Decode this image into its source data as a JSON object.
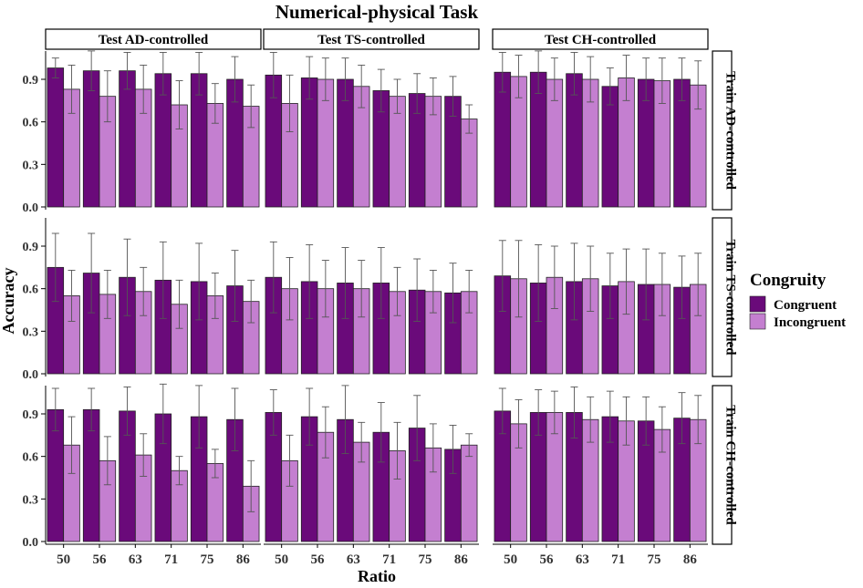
{
  "chart_data": {
    "type": "bar",
    "title": "Numerical-physical Task",
    "xlabel": "Ratio",
    "ylabel": "Accuracy",
    "ylim": [
      0,
      1.08
    ],
    "yticks": [
      "0.0",
      "0.3",
      "0.6",
      "0.9"
    ],
    "ytick_values": [
      0,
      0.3,
      0.6,
      0.9
    ],
    "categories": [
      "50",
      "56",
      "63",
      "71",
      "75",
      "86"
    ],
    "grid": false,
    "legend": {
      "title": "Congruity",
      "placement": "right",
      "entries": [
        {
          "label": "Congruent",
          "color": "#6a0a7a"
        },
        {
          "label": "Incongruent",
          "color": "#c47fd0"
        }
      ]
    },
    "col_facets": [
      "Test AD-controlled",
      "Test TS-controlled",
      "Test CH-controlled"
    ],
    "row_facets": [
      "Train AD-controlled",
      "Train TS-controlled",
      "Train CH-controlled"
    ],
    "colors": {
      "congruent": "#6a0a7a",
      "incongruent": "#c47fd0",
      "strip_fill": "#ffffff",
      "error_bar": "#555555"
    },
    "panels": [
      {
        "row": "Train AD-controlled",
        "col": "Test AD-controlled",
        "series": [
          {
            "name": "Congruent",
            "values": [
              0.98,
              0.96,
              0.96,
              0.94,
              0.94,
              0.9
            ],
            "err": [
              0.07,
              0.14,
              0.13,
              0.15,
              0.15,
              0.16
            ]
          },
          {
            "name": "Incongruent",
            "values": [
              0.83,
              0.78,
              0.83,
              0.72,
              0.73,
              0.71
            ],
            "err": [
              0.17,
              0.18,
              0.17,
              0.17,
              0.14,
              0.15
            ]
          }
        ]
      },
      {
        "row": "Train AD-controlled",
        "col": "Test TS-controlled",
        "series": [
          {
            "name": "Congruent",
            "values": [
              0.93,
              0.91,
              0.9,
              0.82,
              0.8,
              0.78
            ],
            "err": [
              0.16,
              0.15,
              0.15,
              0.15,
              0.14,
              0.14
            ]
          },
          {
            "name": "Incongruent",
            "values": [
              0.73,
              0.9,
              0.85,
              0.78,
              0.78,
              0.62
            ],
            "err": [
              0.2,
              0.15,
              0.15,
              0.12,
              0.13,
              0.1
            ]
          }
        ]
      },
      {
        "row": "Train AD-controlled",
        "col": "Test CH-controlled",
        "series": [
          {
            "name": "Congruent",
            "values": [
              0.95,
              0.95,
              0.94,
              0.85,
              0.9,
              0.9
            ],
            "err": [
              0.14,
              0.15,
              0.15,
              0.13,
              0.15,
              0.15
            ]
          },
          {
            "name": "Incongruent",
            "values": [
              0.92,
              0.9,
              0.9,
              0.91,
              0.89,
              0.86
            ],
            "err": [
              0.15,
              0.15,
              0.16,
              0.16,
              0.16,
              0.17
            ]
          }
        ]
      },
      {
        "row": "Train TS-controlled",
        "col": "Test AD-controlled",
        "series": [
          {
            "name": "Congruent",
            "values": [
              0.75,
              0.71,
              0.68,
              0.66,
              0.65,
              0.62
            ],
            "err": [
              0.24,
              0.28,
              0.27,
              0.27,
              0.27,
              0.25
            ]
          },
          {
            "name": "Incongruent",
            "values": [
              0.55,
              0.56,
              0.58,
              0.49,
              0.55,
              0.51
            ],
            "err": [
              0.18,
              0.17,
              0.17,
              0.17,
              0.16,
              0.15
            ]
          }
        ]
      },
      {
        "row": "Train TS-controlled",
        "col": "Test TS-controlled",
        "series": [
          {
            "name": "Congruent",
            "values": [
              0.68,
              0.65,
              0.64,
              0.64,
              0.59,
              0.57
            ],
            "err": [
              0.25,
              0.26,
              0.25,
              0.25,
              0.22,
              0.21
            ]
          },
          {
            "name": "Incongruent",
            "values": [
              0.6,
              0.6,
              0.6,
              0.58,
              0.58,
              0.58
            ],
            "err": [
              0.22,
              0.2,
              0.2,
              0.17,
              0.15,
              0.15
            ]
          }
        ]
      },
      {
        "row": "Train TS-controlled",
        "col": "Test CH-controlled",
        "series": [
          {
            "name": "Congruent",
            "values": [
              0.69,
              0.64,
              0.65,
              0.62,
              0.63,
              0.61
            ],
            "err": [
              0.25,
              0.27,
              0.27,
              0.23,
              0.25,
              0.22
            ]
          },
          {
            "name": "Incongruent",
            "values": [
              0.67,
              0.68,
              0.67,
              0.65,
              0.63,
              0.63
            ],
            "err": [
              0.27,
              0.22,
              0.23,
              0.23,
              0.22,
              0.22
            ]
          }
        ]
      },
      {
        "row": "Train CH-controlled",
        "col": "Test AD-controlled",
        "series": [
          {
            "name": "Congruent",
            "values": [
              0.93,
              0.93,
              0.92,
              0.9,
              0.88,
              0.86
            ],
            "err": [
              0.15,
              0.15,
              0.17,
              0.21,
              0.22,
              0.22
            ]
          },
          {
            "name": "Incongruent",
            "values": [
              0.68,
              0.57,
              0.61,
              0.5,
              0.55,
              0.39
            ],
            "err": [
              0.2,
              0.17,
              0.15,
              0.1,
              0.1,
              0.18
            ]
          }
        ]
      },
      {
        "row": "Train CH-controlled",
        "col": "Test TS-controlled",
        "series": [
          {
            "name": "Congruent",
            "values": [
              0.91,
              0.88,
              0.86,
              0.77,
              0.8,
              0.65
            ],
            "err": [
              0.16,
              0.2,
              0.24,
              0.21,
              0.23,
              0.17
            ]
          },
          {
            "name": "Incongruent",
            "values": [
              0.57,
              0.77,
              0.7,
              0.64,
              0.66,
              0.68
            ],
            "err": [
              0.18,
              0.18,
              0.14,
              0.2,
              0.17,
              0.08
            ]
          }
        ]
      },
      {
        "row": "Train CH-controlled",
        "col": "Test CH-controlled",
        "series": [
          {
            "name": "Congruent",
            "values": [
              0.92,
              0.91,
              0.91,
              0.88,
              0.85,
              0.87
            ],
            "err": [
              0.16,
              0.16,
              0.18,
              0.18,
              0.17,
              0.18
            ]
          },
          {
            "name": "Incongruent",
            "values": [
              0.83,
              0.91,
              0.86,
              0.85,
              0.79,
              0.86
            ],
            "err": [
              0.17,
              0.15,
              0.16,
              0.17,
              0.16,
              0.17
            ]
          }
        ]
      }
    ]
  }
}
